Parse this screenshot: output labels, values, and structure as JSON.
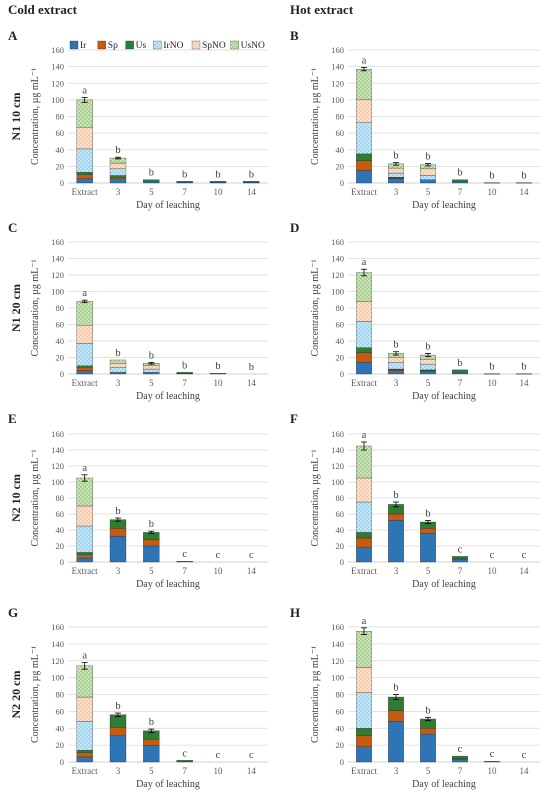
{
  "figure": {
    "col_titles": [
      "Cold extract",
      "Hot extract"
    ],
    "legend": [
      {
        "name": "Ir",
        "color": "#2e75b6",
        "pattern": "solid"
      },
      {
        "name": "Sp",
        "color": "#c55a11",
        "pattern": "solid"
      },
      {
        "name": "Us",
        "color": "#2e7d32",
        "pattern": "solid"
      },
      {
        "name": "IrNO",
        "color": "#9fd6f0",
        "pattern": "dots"
      },
      {
        "name": "SpNO",
        "color": "#f8cbad",
        "pattern": "dots"
      },
      {
        "name": "UsNO",
        "color": "#a9d18e",
        "pattern": "dots"
      }
    ]
  },
  "chart_data": [
    {
      "type": "bar",
      "stacked": true,
      "panel": "A",
      "row_label": "N1 10 cm",
      "ylabel": "Concentration, µg mL⁻¹",
      "xlabel": "Day of leaching",
      "categories": [
        "Extract",
        "3",
        "5",
        "7",
        "10",
        "14"
      ],
      "ylim": [
        0,
        160
      ],
      "yticks": [
        0,
        20,
        40,
        60,
        80,
        100,
        120,
        140,
        160
      ],
      "grid": true,
      "legend": "top",
      "series": [
        {
          "name": "Ir",
          "values": [
            5,
            5,
            2,
            1,
            1,
            1
          ]
        },
        {
          "name": "Sp",
          "values": [
            5,
            2,
            0,
            0,
            0,
            0
          ]
        },
        {
          "name": "Us",
          "values": [
            3,
            2,
            2,
            1,
            1,
            1
          ]
        },
        {
          "name": "IrNO",
          "values": [
            28,
            8,
            0,
            0,
            0,
            0
          ]
        },
        {
          "name": "SpNO",
          "values": [
            26,
            7,
            0,
            0,
            0,
            0
          ]
        },
        {
          "name": "UsNO",
          "values": [
            33,
            6,
            0,
            0,
            0,
            0
          ]
        }
      ],
      "letters": [
        "a",
        "b",
        "b",
        "b",
        "b",
        "b"
      ],
      "errors": [
        3,
        1,
        0,
        0,
        0,
        0
      ]
    },
    {
      "type": "bar",
      "stacked": true,
      "panel": "B",
      "row_label": "",
      "ylabel": "Concentration, µg mL⁻¹",
      "xlabel": "Day of leaching",
      "categories": [
        "Extract",
        "3",
        "5",
        "7",
        "10",
        "14"
      ],
      "ylim": [
        0,
        160
      ],
      "yticks": [
        0,
        20,
        40,
        60,
        80,
        100,
        120,
        140,
        160
      ],
      "grid": true,
      "series": [
        {
          "name": "Ir",
          "values": [
            15,
            5,
            4,
            2,
            0.5,
            0.5
          ]
        },
        {
          "name": "Sp",
          "values": [
            12,
            1,
            0,
            0,
            0,
            0
          ]
        },
        {
          "name": "Us",
          "values": [
            8,
            1,
            0,
            2,
            0,
            0
          ]
        },
        {
          "name": "IrNO",
          "values": [
            38,
            5,
            5,
            0,
            0,
            0
          ]
        },
        {
          "name": "SpNO",
          "values": [
            27,
            6,
            8,
            0,
            0,
            0
          ]
        },
        {
          "name": "UsNO",
          "values": [
            37,
            5,
            5,
            0,
            0,
            0
          ]
        }
      ],
      "letters": [
        "a",
        "b",
        "b",
        "b",
        "b",
        "b"
      ],
      "errors": [
        2,
        1.5,
        1.5,
        0,
        0,
        0
      ]
    },
    {
      "type": "bar",
      "stacked": true,
      "panel": "C",
      "row_label": "N1 20 cm",
      "ylabel": "Concentration, µg mL⁻¹",
      "xlabel": "Day of leaching",
      "categories": [
        "Extract",
        "3",
        "5",
        "7",
        "10",
        "14"
      ],
      "ylim": [
        0,
        160
      ],
      "yticks": [
        0,
        20,
        40,
        60,
        80,
        100,
        120,
        140,
        160
      ],
      "grid": true,
      "series": [
        {
          "name": "Ir",
          "values": [
            4,
            2,
            2,
            1,
            1,
            0
          ]
        },
        {
          "name": "Sp",
          "values": [
            4,
            0,
            0,
            0,
            0,
            0
          ]
        },
        {
          "name": "Us",
          "values": [
            2,
            0,
            0,
            1,
            0,
            0
          ]
        },
        {
          "name": "IrNO",
          "values": [
            27,
            6,
            4,
            0,
            0,
            0
          ]
        },
        {
          "name": "SpNO",
          "values": [
            22,
            5,
            4,
            0,
            0,
            0
          ]
        },
        {
          "name": "UsNO",
          "values": [
            29,
            4,
            3,
            0,
            0,
            0
          ]
        }
      ],
      "letters": [
        "a",
        "b",
        "b",
        "b",
        "b",
        "b"
      ],
      "errors": [
        1.5,
        0,
        1,
        0,
        0,
        0
      ]
    },
    {
      "type": "bar",
      "stacked": true,
      "panel": "D",
      "row_label": "",
      "ylabel": "Concentration, µg mL⁻¹",
      "xlabel": "Day of leaching",
      "categories": [
        "Extract",
        "3",
        "5",
        "7",
        "10",
        "14"
      ],
      "ylim": [
        0,
        160
      ],
      "yticks": [
        0,
        20,
        40,
        60,
        80,
        100,
        120,
        140,
        160
      ],
      "grid": true,
      "series": [
        {
          "name": "Ir",
          "values": [
            14,
            4,
            3,
            2,
            0.5,
            0.5
          ]
        },
        {
          "name": "Sp",
          "values": [
            12,
            1,
            1,
            0,
            0,
            0
          ]
        },
        {
          "name": "Us",
          "values": [
            6,
            1,
            1,
            3,
            0,
            0
          ]
        },
        {
          "name": "IrNO",
          "values": [
            32,
            8,
            7,
            0,
            0,
            0
          ]
        },
        {
          "name": "SpNO",
          "values": [
            24,
            6,
            6,
            0,
            0,
            0
          ]
        },
        {
          "name": "UsNO",
          "values": [
            35,
            5,
            5,
            0,
            0,
            0
          ]
        }
      ],
      "letters": [
        "a",
        "b",
        "b",
        "b",
        "b",
        "b"
      ],
      "errors": [
        4,
        2,
        2,
        0,
        0,
        0
      ]
    },
    {
      "type": "bar",
      "stacked": true,
      "panel": "E",
      "row_label": "N2 10 cm",
      "ylabel": "Concentration, µg mL⁻¹",
      "xlabel": "Day of leaching",
      "categories": [
        "Extract",
        "3",
        "5",
        "7",
        "10",
        "14"
      ],
      "ylim": [
        0,
        160
      ],
      "yticks": [
        0,
        20,
        40,
        60,
        80,
        100,
        120,
        140,
        160
      ],
      "grid": true,
      "series": [
        {
          "name": "Ir",
          "values": [
            5,
            32,
            20,
            1,
            0,
            0
          ]
        },
        {
          "name": "Sp",
          "values": [
            4,
            10,
            8,
            0,
            0,
            0
          ]
        },
        {
          "name": "Us",
          "values": [
            3,
            11,
            9,
            0,
            0,
            0
          ]
        },
        {
          "name": "IrNO",
          "values": [
            33,
            0,
            0,
            0,
            0,
            0
          ]
        },
        {
          "name": "SpNO",
          "values": [
            25,
            0,
            0,
            0,
            0,
            0
          ]
        },
        {
          "name": "UsNO",
          "values": [
            35,
            0,
            0,
            0,
            0,
            0
          ]
        }
      ],
      "letters": [
        "a",
        "b",
        "b",
        "c",
        "c",
        "c"
      ],
      "errors": [
        4,
        2,
        1.5,
        0,
        0,
        0
      ]
    },
    {
      "type": "bar",
      "stacked": true,
      "panel": "F",
      "row_label": "",
      "ylabel": "Concentration, µg mL⁻¹",
      "xlabel": "Day of leaching",
      "categories": [
        "Extract",
        "3",
        "5",
        "7",
        "10",
        "14"
      ],
      "ylim": [
        0,
        160
      ],
      "yticks": [
        0,
        20,
        40,
        60,
        80,
        100,
        120,
        140,
        160
      ],
      "grid": true,
      "series": [
        {
          "name": "Ir",
          "values": [
            18,
            52,
            36,
            3,
            0,
            0
          ]
        },
        {
          "name": "Sp",
          "values": [
            12,
            8,
            6,
            1,
            0,
            0
          ]
        },
        {
          "name": "Us",
          "values": [
            7,
            12,
            8,
            3,
            0,
            0
          ]
        },
        {
          "name": "IrNO",
          "values": [
            38,
            0,
            0,
            0,
            0,
            0
          ]
        },
        {
          "name": "SpNO",
          "values": [
            30,
            0,
            0,
            0,
            0,
            0
          ]
        },
        {
          "name": "UsNO",
          "values": [
            40,
            0,
            0,
            0,
            0,
            0
          ]
        }
      ],
      "letters": [
        "a",
        "b",
        "b",
        "c",
        "c",
        "c"
      ],
      "errors": [
        5,
        3,
        2,
        0,
        0,
        0
      ]
    },
    {
      "type": "bar",
      "stacked": true,
      "panel": "G",
      "row_label": "N2 20 cm",
      "ylabel": "Concentration, µg mL⁻¹",
      "xlabel": "Day of leaching",
      "categories": [
        "Extract",
        "3",
        "5",
        "7",
        "10",
        "14"
      ],
      "ylim": [
        0,
        160
      ],
      "yticks": [
        0,
        20,
        40,
        60,
        80,
        100,
        120,
        140,
        160
      ],
      "grid": true,
      "series": [
        {
          "name": "Ir",
          "values": [
            6,
            31,
            20,
            1,
            0,
            0
          ]
        },
        {
          "name": "Sp",
          "values": [
            5,
            10,
            7,
            0,
            0,
            0
          ]
        },
        {
          "name": "Us",
          "values": [
            3,
            15,
            10,
            1,
            0,
            0
          ]
        },
        {
          "name": "IrNO",
          "values": [
            34,
            0,
            0,
            0,
            0,
            0
          ]
        },
        {
          "name": "SpNO",
          "values": [
            29,
            0,
            0,
            0,
            0,
            0
          ]
        },
        {
          "name": "UsNO",
          "values": [
            37,
            0,
            0,
            0,
            0,
            0
          ]
        }
      ],
      "letters": [
        "a",
        "b",
        "b",
        "c",
        "c",
        "c"
      ],
      "errors": [
        4,
        2,
        2,
        0,
        0,
        0
      ]
    },
    {
      "type": "bar",
      "stacked": true,
      "panel": "H",
      "row_label": "",
      "ylabel": "Concentration, µg mL⁻¹",
      "xlabel": "Day of leaching",
      "categories": [
        "Extract",
        "3",
        "5",
        "7",
        "10",
        "14"
      ],
      "ylim": [
        0,
        160
      ],
      "yticks": [
        0,
        20,
        40,
        60,
        80,
        100,
        120,
        140,
        160
      ],
      "grid": true,
      "series": [
        {
          "name": "Ir",
          "values": [
            18,
            48,
            33,
            3,
            1,
            0
          ]
        },
        {
          "name": "Sp",
          "values": [
            13,
            13,
            7,
            1,
            0,
            0
          ]
        },
        {
          "name": "Us",
          "values": [
            9,
            16,
            11,
            3,
            0,
            0
          ]
        },
        {
          "name": "IrNO",
          "values": [
            42,
            0,
            0,
            0,
            0,
            0
          ]
        },
        {
          "name": "SpNO",
          "values": [
            30,
            0,
            0,
            0,
            0,
            0
          ]
        },
        {
          "name": "UsNO",
          "values": [
            43,
            0,
            0,
            0,
            0,
            0
          ]
        }
      ],
      "letters": [
        "a",
        "b",
        "b",
        "c",
        "c",
        "c"
      ],
      "errors": [
        4,
        3,
        2,
        0,
        0,
        0
      ]
    }
  ]
}
